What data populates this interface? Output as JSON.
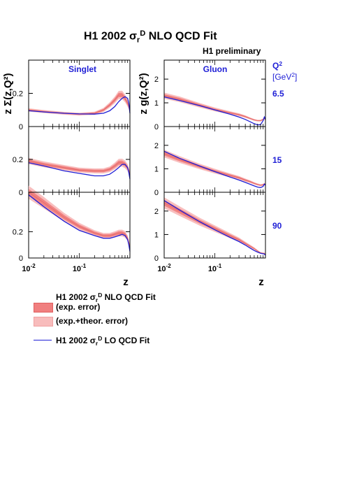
{
  "chart_data": {
    "type": "line",
    "title": {
      "prefix": "H1 2002 ",
      "sigma": "σ",
      "sub": "r",
      "sup": "D",
      "suffix": " NLO QCD Fit"
    },
    "annotation": "H1 preliminary",
    "columns": [
      {
        "name": "Singlet",
        "ylabel": "z Σ(z,Q²)",
        "y_ticks": [
          [
            "0",
            0
          ],
          [
            "0.2",
            0.2
          ]
        ],
        "ylims": [
          [
            0,
            0.4
          ],
          [
            0,
            0.4
          ],
          [
            0,
            0.5
          ]
        ]
      },
      {
        "name": "Gluon",
        "ylabel": "z g(z,Q²)",
        "y_ticks_rows": [
          [
            [
              "0",
              0
            ],
            [
              "1",
              1
            ],
            [
              "2",
              2
            ]
          ],
          [
            [
              "0",
              0
            ],
            [
              "1",
              1
            ],
            [
              "2",
              2
            ]
          ],
          [
            [
              "0",
              0
            ],
            [
              "1",
              1
            ],
            [
              "2",
              2
            ]
          ]
        ],
        "ylims": [
          [
            0,
            2.8
          ],
          [
            0,
            2.8
          ],
          [
            0,
            2.8
          ]
        ]
      }
    ],
    "q2_header": {
      "base": "Q",
      "sup": "2",
      "unit": "[GeV",
      "unit_sup": "2",
      "unit_close": "]"
    },
    "q2_values": [
      "6.5",
      "15",
      "90"
    ],
    "x_scale": "log",
    "xlim": [
      0.01,
      1
    ],
    "x_ticks": [
      {
        "base": "10",
        "exp": "-2"
      },
      {
        "base": "10",
        "exp": "-1"
      }
    ],
    "xlabel": "z",
    "x": [
      0.01,
      0.02,
      0.05,
      0.1,
      0.2,
      0.3,
      0.4,
      0.5,
      0.6,
      0.7,
      0.8,
      0.9,
      0.95,
      1.0
    ],
    "series": {
      "singlet_nlo": [
        [
          0.1,
          0.09,
          0.08,
          0.075,
          0.08,
          0.1,
          0.13,
          0.16,
          0.19,
          0.19,
          0.17,
          0.14,
          0.12,
          0.1
        ],
        [
          0.19,
          0.17,
          0.15,
          0.135,
          0.13,
          0.13,
          0.14,
          0.16,
          0.18,
          0.18,
          0.17,
          0.15,
          0.13,
          0.11
        ],
        [
          0.5,
          0.42,
          0.31,
          0.24,
          0.19,
          0.17,
          0.17,
          0.18,
          0.19,
          0.19,
          0.18,
          0.15,
          0.12,
          0.08
        ]
      ],
      "singlet_lo": [
        [
          0.095,
          0.088,
          0.08,
          0.076,
          0.075,
          0.08,
          0.095,
          0.12,
          0.15,
          0.17,
          0.18,
          0.17,
          0.14,
          0.08
        ],
        [
          0.18,
          0.16,
          0.13,
          0.115,
          0.1,
          0.1,
          0.11,
          0.13,
          0.15,
          0.17,
          0.17,
          0.15,
          0.12,
          0.08
        ],
        [
          0.48,
          0.39,
          0.28,
          0.21,
          0.17,
          0.15,
          0.15,
          0.16,
          0.17,
          0.18,
          0.17,
          0.14,
          0.1,
          0.05
        ]
      ],
      "gluon_nlo": [
        [
          1.3,
          1.15,
          0.9,
          0.72,
          0.58,
          0.5,
          0.42,
          0.34,
          0.28,
          0.25,
          0.25,
          0.3,
          0.35,
          0.3
        ],
        [
          1.65,
          1.4,
          1.1,
          0.9,
          0.72,
          0.62,
          0.52,
          0.45,
          0.38,
          0.33,
          0.3,
          0.32,
          0.35,
          0.32
        ],
        [
          2.35,
          2.0,
          1.55,
          1.25,
          0.95,
          0.78,
          0.62,
          0.5,
          0.4,
          0.3,
          0.22,
          0.2,
          0.2,
          0.15
        ]
      ],
      "gluon_lo": [
        [
          1.25,
          1.1,
          0.88,
          0.7,
          0.52,
          0.4,
          0.3,
          0.2,
          0.12,
          0.07,
          0.08,
          0.25,
          0.4,
          0.3
        ],
        [
          1.75,
          1.45,
          1.12,
          0.88,
          0.65,
          0.52,
          0.42,
          0.34,
          0.27,
          0.22,
          0.2,
          0.25,
          0.35,
          0.3
        ],
        [
          2.45,
          2.05,
          1.55,
          1.2,
          0.88,
          0.7,
          0.55,
          0.42,
          0.32,
          0.25,
          0.2,
          0.18,
          0.17,
          0.12
        ]
      ]
    },
    "band_halfwidth": {
      "exp": [
        0.05,
        0.08
      ],
      "total": [
        0.1,
        0.15
      ]
    },
    "legend": [
      {
        "kind": "title",
        "prefix": "H1 2002 ",
        "sigma": "σ",
        "sub": "r",
        "sup": "D",
        "suffix": " NLO QCD Fit"
      },
      {
        "kind": "band-exp",
        "label": "(exp. error)"
      },
      {
        "kind": "band-total",
        "label": "(exp.+theor. error)"
      },
      {
        "kind": "line",
        "prefix": "H1 2002 ",
        "sigma": "σ",
        "sub": "r",
        "sup": "D",
        "suffix": " LO QCD Fit"
      }
    ],
    "colors": {
      "lo_line": "#1f1fd6",
      "band_exp": "#f07f7f",
      "band_total": "#f8bcbc",
      "label_blue": "#1f1fd6"
    }
  }
}
